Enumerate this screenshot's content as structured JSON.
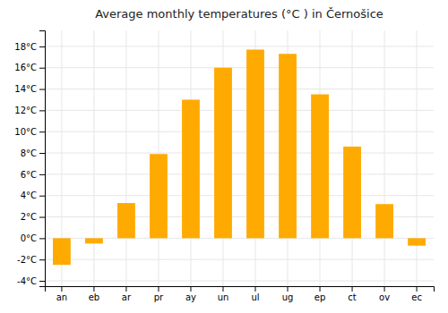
{
  "chart_data": {
    "type": "bar",
    "title": "Average monthly temperatures (°C ) in Černošice",
    "categories": [
      "an",
      "eb",
      "ar",
      "pr",
      "ay",
      "un",
      "ul",
      "ug",
      "ep",
      "ct",
      "ov",
      "ec"
    ],
    "values": [
      -2.5,
      -0.5,
      3.3,
      7.9,
      13.0,
      16.0,
      17.7,
      17.3,
      13.5,
      8.6,
      3.2,
      -0.7
    ],
    "color": "#FFAA00",
    "ylim": [
      -4.5,
      19.5
    ],
    "yticks": [
      {
        "value": -4,
        "label": "-4°C"
      },
      {
        "value": -2,
        "label": "-2°C"
      },
      {
        "value": 0,
        "label": "0°C"
      },
      {
        "value": 2,
        "label": "2°C"
      },
      {
        "value": 4,
        "label": "4°C"
      },
      {
        "value": 6,
        "label": "6°C"
      },
      {
        "value": 8,
        "label": "8°C"
      },
      {
        "value": 10,
        "label": "10°C"
      },
      {
        "value": 12,
        "label": "12°C"
      },
      {
        "value": 14,
        "label": "14°C"
      },
      {
        "value": 16,
        "label": "16°C"
      },
      {
        "value": 18,
        "label": "18°C"
      }
    ],
    "grid": true
  }
}
